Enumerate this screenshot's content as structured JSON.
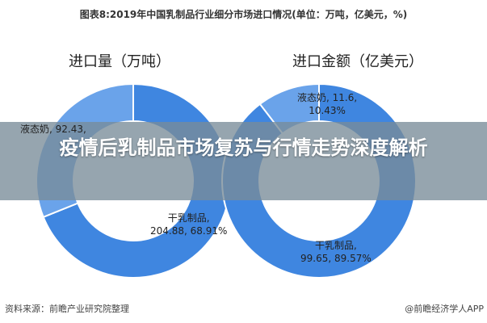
{
  "title": "图表8:2019年中国乳制品行业细分市场进口情况(单位：万吨，亿美元，%)",
  "chart_data": [
    {
      "type": "pie",
      "subtype": "donut",
      "title": "进口量（万吨）",
      "slices": [
        {
          "name": "干乳制品",
          "value": 204.88,
          "percent": 68.91,
          "color": "#3f86e0",
          "label": [
            "干乳制品,",
            "204.88, 68.91%"
          ]
        },
        {
          "name": "液态奶",
          "value": 92.43,
          "color": "#6aa3ea",
          "label": [
            "液态奶, 92.43,"
          ]
        }
      ]
    },
    {
      "type": "pie",
      "subtype": "donut",
      "title": "进口金额（亿美元）",
      "slices": [
        {
          "name": "干乳制品",
          "value": 99.65,
          "percent": 89.57,
          "color": "#3f86e0",
          "label": [
            "干乳制品,",
            "99.65, 89.57%"
          ]
        },
        {
          "name": "液态奶",
          "value": 11.6,
          "percent": 10.43,
          "color": "#6aa3ea",
          "label": [
            "液态奶, 11.6,",
            "10.43%"
          ]
        }
      ]
    }
  ],
  "banner": {
    "text": "疫情后乳制品市场复苏与行情走势深度解析"
  },
  "footer": {
    "source": "资料来源：前瞻产业研究院整理",
    "credit": "@前瞻经济学人APP"
  }
}
